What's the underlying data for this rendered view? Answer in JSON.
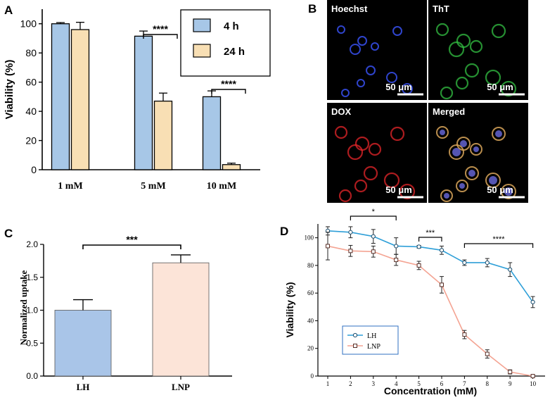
{
  "colors": {
    "blue_bar": "#a7c7e7",
    "tan_bar": "#f8dfb4",
    "lh_bar": "#a9c5e8",
    "lnp_bar": "#fce4d8",
    "lh_line": "#2e9fd8",
    "lnp_line": "#f4a493",
    "hoechst": "#3b55ff",
    "tht": "#33c043",
    "dox": "#e5262a",
    "merged": "#d9a65a"
  },
  "chart_data": [
    {
      "panel": "A",
      "type": "bar",
      "title": "",
      "xlabel": "",
      "ylabel": "Viability (%)",
      "ylim": [
        0,
        110
      ],
      "yticks": [
        0,
        20,
        40,
        60,
        80,
        100
      ],
      "categories": [
        "1 mM",
        "5 mM",
        "10 mM"
      ],
      "series": [
        {
          "name": "4 h",
          "values": [
            100,
            91.5,
            50
          ],
          "errors": [
            0.8,
            3.5,
            4
          ]
        },
        {
          "name": "24 h",
          "values": [
            96,
            47,
            3.5
          ],
          "errors": [
            5,
            5.5,
            1
          ]
        }
      ],
      "annotations": [
        {
          "text": "****",
          "from": "5 mM/4 h",
          "to": "5 mM/24 h"
        },
        {
          "text": "****",
          "from": "10 mM/4 h",
          "to": "10 mM/24 h"
        }
      ],
      "legend_position": "top-right"
    },
    {
      "panel": "C",
      "type": "bar",
      "title": "",
      "xlabel": "",
      "ylabel": "Normalized uptake",
      "ylim": [
        0,
        2.0
      ],
      "yticks": [
        "0.0",
        "0.5",
        "1.0",
        "1.5",
        "2.0"
      ],
      "categories": [
        "LH",
        "LNP"
      ],
      "values": [
        1.0,
        1.72
      ],
      "errors": [
        0.16,
        0.12
      ],
      "annotations": [
        {
          "text": "***",
          "from": "LH",
          "to": "LNP"
        }
      ]
    },
    {
      "panel": "D",
      "type": "line",
      "title": "",
      "xlabel": "Concentration (mM)",
      "ylabel": "Viability (%)",
      "ylim": [
        0,
        110
      ],
      "yticks": [
        0,
        20,
        40,
        60,
        80,
        100
      ],
      "x": [
        1,
        2,
        3,
        4,
        5,
        6,
        7,
        8,
        9,
        10
      ],
      "series": [
        {
          "name": "LH",
          "values": [
            105,
            104,
            101,
            94,
            93.5,
            91,
            82,
            82,
            77,
            53.5
          ],
          "errors": [
            3,
            4,
            5,
            6,
            1,
            3,
            2,
            3,
            5,
            4
          ]
        },
        {
          "name": "LNP",
          "values": [
            94,
            90.5,
            90,
            84,
            80,
            66,
            30,
            16,
            3,
            0
          ],
          "errors": [
            10,
            4,
            4,
            4,
            3,
            6,
            3,
            3,
            1.5,
            0.5
          ]
        }
      ],
      "annotations": [
        {
          "text": "*",
          "x_from": 2,
          "x_to": 4
        },
        {
          "text": "***",
          "x_from": 5,
          "x_to": 6
        },
        {
          "text": "****",
          "x_from": 7,
          "x_to": 10
        }
      ],
      "legend_position": "bottom-left"
    }
  ],
  "panels": {
    "a_label": "A",
    "b_label": "B",
    "c_label": "C",
    "d_label": "D"
  },
  "micrographs": {
    "tiles": [
      {
        "label": "Hoechst",
        "scale": "50 μm"
      },
      {
        "label": "ThT",
        "scale": "50 μm"
      },
      {
        "label": "DOX",
        "scale": "50 μm"
      },
      {
        "label": "Merged",
        "scale": "50 μm"
      }
    ]
  }
}
